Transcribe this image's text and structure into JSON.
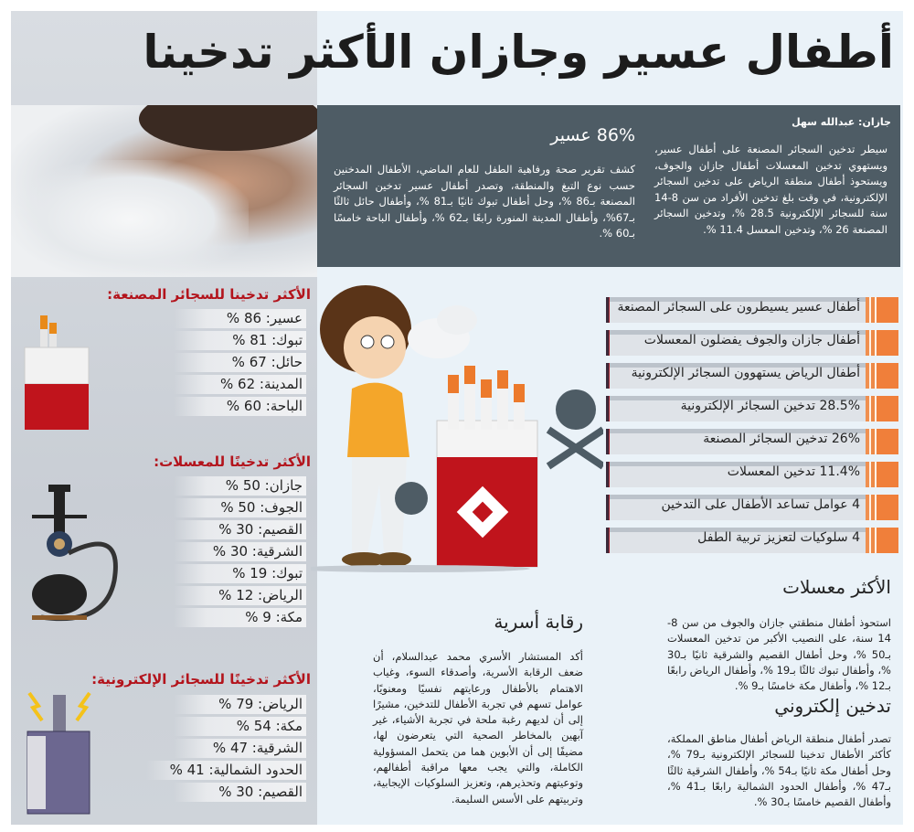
{
  "title": "أطفال عسير وجازان الأكثر تدخينا",
  "byline": "جازان: عبدالله سهل",
  "intro": "سيطر تدخين السجائر المصنعة على أطفال عسير، ويستهوي تدخين المعسلات أطفال جازان والجوف، ويستحوذ أطفال منطقة الرياض على تدخين السجائر الإلكترونية، في وقت بلغ تدخين الأفراد من سن 8-14 سنة للسجائر الإلكترونية 28.5 %، وتدخين السجائر المصنعة 26 %، وتدخين المعسل 11.4 %.",
  "asir": {
    "heading": "86% عسير",
    "text": "كشف تقرير صحة ورفاهية الطفل للعام الماضي، الأطفال المدخنين حسب نوع التبغ والمنطقة، وتصدر أطفال عسير تدخين السجائر المصنعة بـ86 %، وحل أطفال تبوك ثانيًا بـ81 %، وأطفال حائل ثالثًا بـ67%، وأطفال المدينة المنورة رابعًا بـ62 %، وأطفال الباحة خامسًا بـ60 %."
  },
  "highlights": [
    "أطفال عسير يسيطرون على السجائر المصنعة",
    "أطفال جازان والجوف يفضلون المعسلات",
    "أطفال الرياض يستهوون السجائر الإلكترونية",
    "28.5% تدخين السجائر الإلكترونية",
    "26% تدخين السجائر المصنعة",
    "11.4% تدخين المعسلات",
    "4 عوامل تساعد الأطفال على التدخين",
    "4 سلوكيات لتعزيز تربية الطفل"
  ],
  "lists": [
    {
      "heading": "الأكثر تدخينا للسجائر المصنعة:",
      "items": [
        "عسير: 86 %",
        "تبوك: 81 %",
        "حائل: 67 %",
        "المدينة: 62 %",
        "الباحة: 60 %"
      ]
    },
    {
      "heading": "الأكثر تدخينًا للمعسلات:",
      "items": [
        "جازان: 50 %",
        "الجوف: 50 %",
        "القصيم: 30 %",
        "الشرقية: 30 %",
        "تبوك: 19 %",
        "الرياض: 12 %",
        "مكة: 9 %"
      ]
    },
    {
      "heading": "الأكثر تدخينًا للسجائر الإلكترونية:",
      "items": [
        "الرياض: 79 %",
        "مكة: 54 %",
        "الشرقية: 47 %",
        "الحدود الشمالية: 41 %",
        "القصيم: 30 %"
      ]
    }
  ],
  "shisha": {
    "heading": "الأكثر معسلات",
    "text": "استحوذ أطفال منطقتي جازان والجوف من سن 8-14 سنة، على النصيب الأكبر من تدخين المعسلات بـ50 %، وحل أطفال القصيم والشرقية ثانيًا بـ30 %، وأطفال تبوك ثالثًا بـ19 %، وأطفال الرياض رابعًا بـ12 %، وأطفال مكة خامسًا بـ9 %."
  },
  "ecig": {
    "heading": "تدخين إلكتروني",
    "text": "تصدر أطفال منطقة الرياض أطفال مناطق المملكة، كأكثر الأطفال تدخينا للسجائر الإلكترونية بـ79 %، وحل أطفال مكة ثانيًا بـ54 %، وأطفال الشرقية ثالثًا بـ47 %، وأطفال الحدود الشمالية رابعًا بـ41 %، وأطفال القصيم خامسًا بـ30 %."
  },
  "family": {
    "heading": "رقابة أسرية",
    "text": "أكد المستشار الأسري محمد عبدالسلام، أن ضعف الرقابة الأسرية، وأصدقاء السوء، وغياب الاهتمام بالأطفال ورعايتهم نفسيًا ومعنويًا، عوامل تسهم في تجربة الأطفال للتدخين، مشيرًا إلى أن لديهم رغبة ملحة في تجربة الأشياء، غير آبهين بالمخاطر الصحية التي يتعرضون لها، مضيفًا إلى أن الأبوين هما من يتحمل المسؤولية الكاملة، والتي يجب معها مراقبة أطفالهم، وتوعيتهم وتحذيرهم، وتعزيز السلوكيات الإيجابية، وتربيتهم على الأسس السليمة."
  },
  "colors": {
    "accent_red": "#b3141c",
    "dark_box": "#4e5c65",
    "orange": "#f07f3a"
  }
}
